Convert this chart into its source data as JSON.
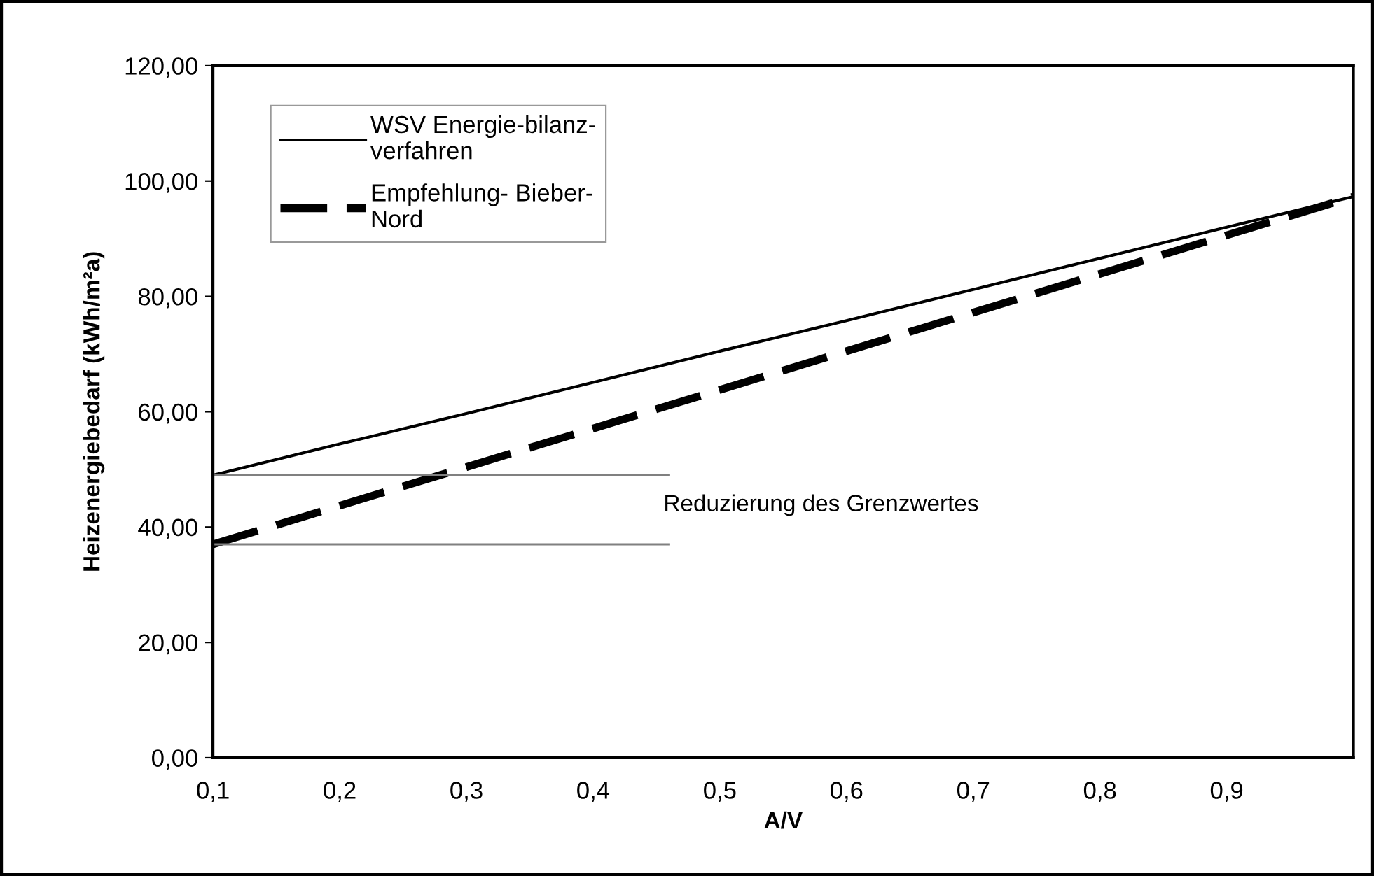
{
  "chart_data": {
    "type": "line",
    "xlabel": "A/V",
    "ylabel": "Heizenergiebedarf (kWh/m²a)",
    "x": [
      0.1,
      0.2,
      0.3,
      0.4,
      0.5,
      0.6,
      0.7,
      0.8,
      0.9,
      1.0
    ],
    "series": [
      {
        "name": "WSV Energie-bilanz-\nverfahren",
        "color": "#000000",
        "line_style": "solid",
        "values": [
          49,
          54.4,
          59.7,
          65.1,
          70.5,
          75.8,
          81.2,
          86.6,
          92.0,
          97.3
        ]
      },
      {
        "name": "Empfehlung- Bieber-\nNord",
        "color": "#000000",
        "line_style": "dashed",
        "values": [
          37,
          43.7,
          50.4,
          57.1,
          63.8,
          70.5,
          77.2,
          83.9,
          90.6,
          97.3
        ]
      }
    ],
    "ref_lines": [
      {
        "axis": "y",
        "value": 49,
        "color": "#808080"
      },
      {
        "axis": "y",
        "value": 37,
        "color": "#808080"
      }
    ],
    "annotations": [
      "Reduzierung des Grenzwertes"
    ],
    "xlim": [
      0.1,
      1.0
    ],
    "xticks": [
      {
        "value": 0.1,
        "label": "0,1"
      },
      {
        "value": 0.2,
        "label": "0,2"
      },
      {
        "value": 0.3,
        "label": "0,3"
      },
      {
        "value": 0.4,
        "label": "0,4"
      },
      {
        "value": 0.5,
        "label": "0,5"
      },
      {
        "value": 0.6,
        "label": "0,6"
      },
      {
        "value": 0.7,
        "label": "0,7"
      },
      {
        "value": 0.8,
        "label": "0,8"
      },
      {
        "value": 0.9,
        "label": "0,9"
      }
    ],
    "ylim": [
      0,
      120
    ],
    "yticks": [
      {
        "value": 0,
        "label": "0,00"
      },
      {
        "value": 20,
        "label": "20,00"
      },
      {
        "value": 40,
        "label": "40,00"
      },
      {
        "value": 60,
        "label": "60,00"
      },
      {
        "value": 80,
        "label": "80,00"
      },
      {
        "value": 100,
        "label": "100,00"
      },
      {
        "value": 120,
        "label": "120,00"
      }
    ],
    "grid": false,
    "legend": "top left",
    "marker": "none"
  }
}
